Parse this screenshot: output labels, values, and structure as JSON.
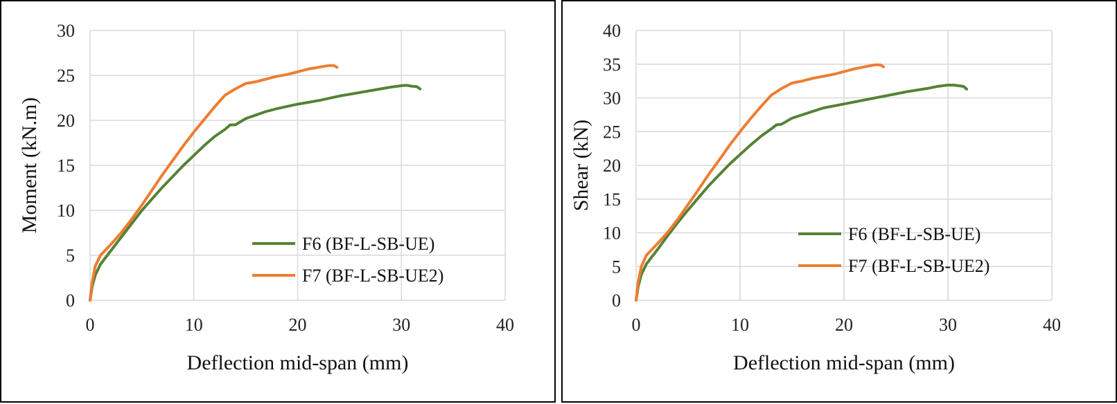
{
  "chart_data": [
    {
      "type": "line",
      "title": "",
      "xlabel": "Deflection mid-span (mm)",
      "ylabel": "Moment (kN.m)",
      "xlim": [
        0,
        40
      ],
      "ylim": [
        0,
        30
      ],
      "xticks": [
        0,
        10,
        20,
        30,
        40
      ],
      "yticks": [
        0,
        5,
        10,
        15,
        20,
        25,
        30
      ],
      "grid": true,
      "legend": "bottom-right",
      "series": [
        {
          "name": "F6 (BF-L-SB-UE)",
          "color": "#548235",
          "x": [
            0,
            0.2,
            0.5,
            1,
            2,
            3,
            4,
            5,
            6,
            7,
            8,
            9,
            10,
            11,
            12,
            13,
            13.5,
            14,
            15,
            16,
            17,
            18,
            20,
            22,
            24,
            26,
            28,
            29,
            30,
            30.5,
            31,
            31.5,
            31.8
          ],
          "y": [
            0,
            1.5,
            2.8,
            4,
            5.5,
            7,
            8.5,
            10,
            11.3,
            12.6,
            13.8,
            15,
            16.1,
            17.2,
            18.2,
            19,
            19.5,
            19.5,
            20.2,
            20.6,
            21,
            21.3,
            21.8,
            22.2,
            22.7,
            23.1,
            23.5,
            23.7,
            23.85,
            23.9,
            23.8,
            23.75,
            23.5
          ]
        },
        {
          "name": "F7 (BF-L-SB-UE2)",
          "color": "#ED7D31",
          "x": [
            0,
            0.2,
            0.5,
            1,
            2,
            3,
            4,
            5,
            6,
            7,
            8,
            9,
            10,
            11,
            12,
            13,
            14,
            15,
            16,
            17,
            18,
            19,
            20,
            21,
            22,
            23,
            23.5,
            23.8
          ],
          "y": [
            0,
            2,
            3.8,
            5,
            6.2,
            7.5,
            9,
            10.6,
            12.3,
            14,
            15.6,
            17.2,
            18.7,
            20.1,
            21.5,
            22.8,
            23.5,
            24.1,
            24.3,
            24.6,
            24.9,
            25.1,
            25.4,
            25.7,
            25.9,
            26.1,
            26.1,
            25.9
          ]
        }
      ]
    },
    {
      "type": "line",
      "title": "",
      "xlabel": "Deflection mid-span (mm)",
      "ylabel": "Shear (kN)",
      "xlim": [
        0,
        40
      ],
      "ylim": [
        0,
        40
      ],
      "xticks": [
        0,
        10,
        20,
        30,
        40
      ],
      "yticks": [
        0,
        5,
        10,
        15,
        20,
        25,
        30,
        35,
        40
      ],
      "grid": true,
      "legend": "bottom-right",
      "series": [
        {
          "name": "F6 (BF-L-SB-UE)",
          "color": "#548235",
          "x": [
            0,
            0.2,
            0.5,
            1,
            2,
            3,
            4,
            5,
            6,
            7,
            8,
            9,
            10,
            11,
            12,
            13,
            13.5,
            14,
            15,
            16,
            17,
            18,
            20,
            22,
            24,
            26,
            28,
            29,
            30,
            30.5,
            31,
            31.5,
            31.8
          ],
          "y": [
            0,
            2,
            3.8,
            5.4,
            7.4,
            9.5,
            11.5,
            13.4,
            15.2,
            17,
            18.6,
            20.2,
            21.6,
            23,
            24.3,
            25.4,
            26,
            26.1,
            27,
            27.5,
            28,
            28.5,
            29.1,
            29.7,
            30.3,
            30.9,
            31.4,
            31.7,
            31.9,
            31.9,
            31.8,
            31.7,
            31.3
          ]
        },
        {
          "name": "F7 (BF-L-SB-UE2)",
          "color": "#ED7D31",
          "x": [
            0,
            0.2,
            0.5,
            1,
            2,
            3,
            4,
            5,
            6,
            7,
            8,
            9,
            10,
            11,
            12,
            13,
            14,
            15,
            16,
            17,
            18,
            19,
            20,
            21,
            22,
            23,
            23.5,
            23.8
          ],
          "y": [
            0,
            2.7,
            5,
            6.7,
            8.3,
            10,
            12,
            14.2,
            16.4,
            18.7,
            20.8,
            23,
            25,
            26.9,
            28.7,
            30.4,
            31.4,
            32.2,
            32.5,
            32.9,
            33.2,
            33.5,
            33.9,
            34.3,
            34.6,
            34.9,
            34.9,
            34.6
          ]
        }
      ]
    }
  ]
}
